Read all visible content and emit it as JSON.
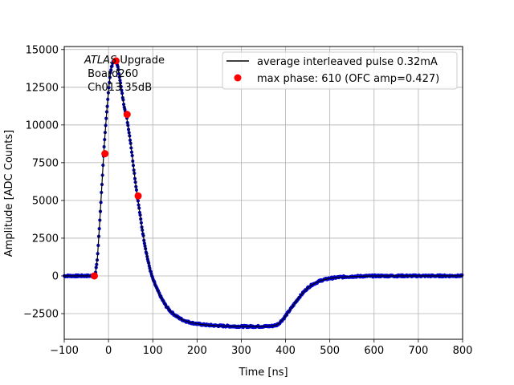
{
  "chart_data": {
    "type": "scatter",
    "xlabel": "Time [ns]",
    "ylabel": "Amplitude [ADC Counts]",
    "xlim": [
      -100,
      800
    ],
    "ylim": [
      -4200,
      15200
    ],
    "xticks": [
      -100,
      0,
      100,
      200,
      300,
      400,
      500,
      600,
      700,
      800
    ],
    "yticks": [
      -2500,
      0,
      2500,
      5000,
      7500,
      10000,
      12500,
      15000
    ],
    "grid": true,
    "legend_position": "top-right",
    "annotation": {
      "line1_italic": "ATLAS",
      "line1_rest": " Upgrade",
      "line2": " Board260",
      "line3": " Ch013 35dB"
    },
    "series": [
      {
        "name": "average interleaved pulse 0.32mA",
        "kind": "line",
        "color": "#000000",
        "x": [
          -100,
          -40,
          -35,
          -30,
          -25,
          -20,
          -15,
          -10,
          -5,
          0,
          5,
          10,
          15,
          20,
          25,
          30,
          35,
          40,
          45,
          50,
          55,
          60,
          65,
          70,
          75,
          80,
          85,
          90,
          95,
          100,
          110,
          120,
          130,
          140,
          150,
          160,
          170,
          180,
          190,
          200,
          220,
          240,
          260,
          280,
          300,
          320,
          340,
          360,
          370,
          380,
          385,
          390,
          395,
          400,
          410,
          420,
          430,
          440,
          450,
          460,
          480,
          500,
          520,
          540,
          560,
          580,
          600,
          650,
          700,
          750,
          800
        ],
        "y": [
          0,
          0,
          0,
          30,
          1200,
          3500,
          6000,
          8500,
          10500,
          12300,
          13600,
          14200,
          14250,
          14000,
          13200,
          12200,
          11300,
          10700,
          9800,
          8800,
          7600,
          6400,
          5300,
          4300,
          3300,
          2400,
          1600,
          900,
          300,
          -200,
          -900,
          -1500,
          -2000,
          -2350,
          -2600,
          -2800,
          -2950,
          -3050,
          -3120,
          -3180,
          -3250,
          -3290,
          -3320,
          -3340,
          -3350,
          -3350,
          -3350,
          -3340,
          -3320,
          -3250,
          -3150,
          -3000,
          -2850,
          -2650,
          -2250,
          -1850,
          -1450,
          -1100,
          -800,
          -580,
          -300,
          -160,
          -90,
          -50,
          -30,
          -15,
          -5,
          0,
          0,
          0,
          0
        ]
      },
      {
        "name": "max phase: 610 (OFC amp=0.427)",
        "kind": "markers",
        "color": "#ff0000",
        "x": [
          -32,
          -8,
          17,
          42,
          67
        ],
        "y": [
          0,
          8100,
          14250,
          10700,
          5300
        ]
      }
    ],
    "sample_dots_color": "#0000cc"
  }
}
